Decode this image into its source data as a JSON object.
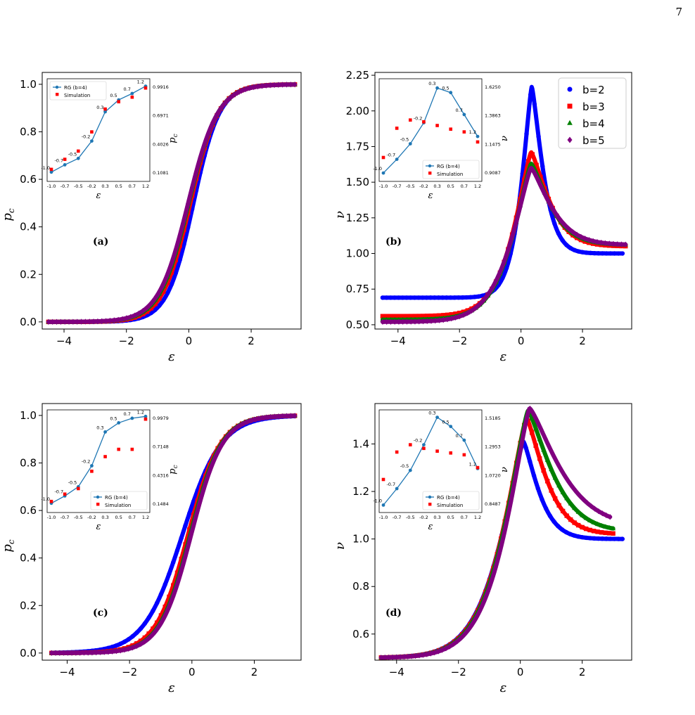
{
  "page_number": "7",
  "chart_data": [
    {
      "panel_label": "(a)",
      "type": "scatter",
      "xlabel": "ε",
      "ylabel": "p_c",
      "xlim": [
        -4.7,
        3.6
      ],
      "ylim": [
        -0.03,
        1.05
      ],
      "x_ticks": [
        -4,
        -2,
        0,
        2
      ],
      "y_ticks": [
        0.0,
        0.2,
        0.4,
        0.6,
        0.8,
        1.0
      ],
      "legend": null,
      "series": [
        {
          "color": "#0000ff",
          "marker": "circle",
          "curve": "sigmoid",
          "x_range": [
            -4.5,
            3.4
          ],
          "center": 0.15,
          "width": 0.42
        },
        {
          "color": "#ff0000",
          "marker": "square",
          "curve": "sigmoid",
          "x_range": [
            -4.5,
            3.4
          ],
          "center": 0.05,
          "width": 0.45
        },
        {
          "color": "#008000",
          "marker": "triangle",
          "curve": "sigmoid",
          "x_range": [
            -4.5,
            3.4
          ],
          "center": 0.0,
          "width": 0.47
        },
        {
          "color": "#800080",
          "marker": "diamond",
          "curve": "sigmoid",
          "x_range": [
            -4.5,
            3.4
          ],
          "center": -0.02,
          "width": 0.48
        }
      ],
      "inset": {
        "xlabel": "ε",
        "ylabel_right": "p_c",
        "x_tick_labels": [
          "-1.0",
          "-0.7",
          "-0.5",
          "-0.2",
          "0.3",
          "0.5",
          "0.7",
          "1.2"
        ],
        "y_left_ticks": [
          "0.6"
        ],
        "y_right_ticks": [
          "0.1081",
          "0.4026",
          "0.6971",
          "0.9916"
        ],
        "legend": [
          "RG (b=4)",
          "Simulation"
        ],
        "legend_position": "top-left",
        "rg_x": [
          -1.0,
          -0.7,
          -0.5,
          -0.2,
          0.3,
          0.5,
          0.7,
          1.2
        ],
        "rg_y": [
          0.04,
          0.12,
          0.19,
          0.38,
          0.7,
          0.83,
          0.9,
          0.98
        ],
        "sim_x": [
          -1.0,
          -0.7,
          -0.5,
          -0.2,
          0.3,
          0.5,
          0.7,
          1.2
        ],
        "sim_y": [
          0.07,
          0.18,
          0.27,
          0.48,
          0.73,
          0.81,
          0.86,
          0.96
        ],
        "rg_point_labels": [
          "-1.0",
          "-0.7",
          "-0.5",
          "-0.2",
          "0.3",
          "0.5",
          "0.7",
          "1.2"
        ],
        "sim_point_labels": [
          "-0.7",
          "-0.5",
          "-0.2",
          "0.5"
        ]
      }
    },
    {
      "panel_label": "(b)",
      "type": "scatter",
      "xlabel": "ε",
      "ylabel": "ν",
      "xlim": [
        -4.75,
        3.6
      ],
      "ylim": [
        0.47,
        2.27
      ],
      "x_ticks": [
        -4,
        -2,
        0,
        2
      ],
      "y_ticks": [
        0.5,
        0.75,
        1.0,
        1.25,
        1.5,
        1.75,
        2.0,
        2.25
      ],
      "legend": [
        "b=2",
        "b=3",
        "b=4",
        "b=5"
      ],
      "legend_position": "top-right",
      "series": [
        {
          "name": "b=2",
          "color": "#0000ff",
          "marker": "circle",
          "curve": "peak",
          "x_range": [
            -4.5,
            3.3
          ],
          "left": 0.69,
          "right": 1.0,
          "peak": 2.17,
          "peak_x": 0.35,
          "left_w": 0.45,
          "right_w": 0.45
        },
        {
          "name": "b=3",
          "color": "#ff0000",
          "marker": "square",
          "curve": "peak",
          "x_range": [
            -4.5,
            3.4
          ],
          "left": 0.56,
          "right": 1.05,
          "peak": 1.71,
          "peak_x": 0.33,
          "left_w": 0.75,
          "right_w": 0.7
        },
        {
          "name": "b=4",
          "color": "#008000",
          "marker": "triangle",
          "curve": "peak",
          "x_range": [
            -4.5,
            3.4
          ],
          "left": 0.535,
          "right": 1.06,
          "peak": 1.63,
          "peak_x": 0.33,
          "left_w": 0.8,
          "right_w": 0.75
        },
        {
          "name": "b=5",
          "color": "#800080",
          "marker": "diamond",
          "curve": "peak",
          "x_range": [
            -4.5,
            3.4
          ],
          "left": 0.52,
          "right": 1.06,
          "peak": 1.6,
          "peak_x": 0.33,
          "left_w": 0.85,
          "right_w": 0.8
        }
      ],
      "inset": {
        "xlabel": "ε",
        "ylabel_right": "ν",
        "x_tick_labels": [
          "-1.0",
          "-0.7",
          "-0.5",
          "-0.2",
          "0.3",
          "0.5",
          "0.7",
          "1.2"
        ],
        "y_left_ticks": [
          "1.50"
        ],
        "y_right_ticks": [
          "0.9087",
          "1.1475",
          "1.3863",
          "1.6250"
        ],
        "legend": [
          "RG (b=4)",
          "Simulation"
        ],
        "legend_position": "bottom-right",
        "rg_x": [
          -1.0,
          -0.7,
          -0.5,
          -0.2,
          0.3,
          0.5,
          0.7,
          1.2
        ],
        "rg_y": [
          0.03,
          0.18,
          0.35,
          0.58,
          0.96,
          0.91,
          0.67,
          0.43
        ],
        "sim_x": [
          -1.0,
          -0.7,
          -0.5,
          -0.2,
          0.3,
          0.5,
          0.7,
          1.2
        ],
        "sim_y": [
          0.2,
          0.52,
          0.61,
          0.59,
          0.55,
          0.51,
          0.48,
          0.37
        ],
        "rg_point_labels": [
          "-1.0",
          "-0.7",
          "-0.5",
          "-0.2",
          "0.3",
          "0.5",
          "0.7",
          "1.2"
        ],
        "sim_point_labels": [
          "-1.0",
          "-0.7",
          "-0.5",
          "-0.2",
          "0.3",
          "0.5",
          "0.7",
          "1.2"
        ]
      }
    },
    {
      "panel_label": "(c)",
      "type": "scatter",
      "xlabel": "ε",
      "ylabel": "p_c",
      "xlim": [
        -4.8,
        3.5
      ],
      "ylim": [
        -0.03,
        1.05
      ],
      "x_ticks": [
        -4,
        -2,
        0,
        2
      ],
      "y_ticks": [
        0.0,
        0.2,
        0.4,
        0.6,
        0.8,
        1.0
      ],
      "legend": null,
      "series": [
        {
          "color": "#0000ff",
          "marker": "circle",
          "curve": "sigmoid",
          "x_range": [
            -4.5,
            3.3
          ],
          "center": -0.3,
          "width": 0.62
        },
        {
          "color": "#ff0000",
          "marker": "square",
          "curve": "sigmoid",
          "x_range": [
            -4.5,
            3.3
          ],
          "center": -0.12,
          "width": 0.52
        },
        {
          "color": "#008000",
          "marker": "triangle",
          "curve": "sigmoid",
          "x_range": [
            -4.5,
            3.3
          ],
          "center": -0.05,
          "width": 0.5
        },
        {
          "color": "#800080",
          "marker": "diamond",
          "curve": "sigmoid",
          "x_range": [
            -4.5,
            3.3
          ],
          "center": -0.02,
          "width": 0.5
        }
      ],
      "inset": {
        "xlabel": "ε",
        "ylabel_right": "p_c",
        "x_tick_labels": [
          "-1.0",
          "-0.7",
          "-0.5",
          "-0.2",
          "0.3",
          "0.5",
          "0.7",
          "1.2"
        ],
        "y_left_ticks": [
          "0.6"
        ],
        "y_right_ticks": [
          "0.1484",
          "0.4316",
          "0.7148",
          "0.9979"
        ],
        "legend": [
          "RG (b=4)",
          "Simulation"
        ],
        "legend_position": "bottom-right",
        "rg_x": [
          -1.0,
          -0.7,
          -0.5,
          -0.2,
          0.3,
          0.5,
          0.7,
          1.2
        ],
        "rg_y": [
          0.04,
          0.12,
          0.22,
          0.45,
          0.82,
          0.92,
          0.97,
          0.99
        ],
        "sim_x": [
          -1.0,
          -0.7,
          -0.5,
          -0.2,
          0.3,
          0.5,
          0.7,
          1.2
        ],
        "sim_y": [
          0.06,
          0.14,
          0.2,
          0.39,
          0.55,
          0.63,
          0.63,
          0.96
        ],
        "rg_point_labels": [
          "-1.0",
          "-0.7",
          "-0.5",
          "-0.2",
          "0.3",
          "0.5",
          "0.7",
          "1.2"
        ],
        "sim_point_labels": [
          "-0.7",
          "-0.5",
          "-0.2",
          "0.3",
          "0.5",
          "0.7"
        ]
      }
    },
    {
      "panel_label": "(d)",
      "type": "scatter",
      "xlabel": "ε",
      "ylabel": "ν",
      "xlim": [
        -4.7,
        3.6
      ],
      "ylim": [
        0.49,
        1.57
      ],
      "x_ticks": [
        -4,
        -2,
        0,
        2
      ],
      "y_ticks": [
        0.6,
        0.8,
        1.0,
        1.2,
        1.4
      ],
      "legend": null,
      "series": [
        {
          "color": "#0000ff",
          "marker": "circle",
          "curve": "peak",
          "x_range": [
            -4.5,
            3.3
          ],
          "left": 0.5,
          "right": 1.0,
          "peak": 1.41,
          "peak_x": 0.1,
          "left_w": 1.0,
          "right_w": 0.6
        },
        {
          "color": "#ff0000",
          "marker": "square",
          "curve": "peak",
          "x_range": [
            -4.5,
            3.0
          ],
          "left": 0.5,
          "right": 1.02,
          "peak": 1.51,
          "peak_x": 0.2,
          "left_w": 1.0,
          "right_w": 0.75
        },
        {
          "color": "#008000",
          "marker": "triangle",
          "curve": "peak",
          "x_range": [
            -4.5,
            3.0
          ],
          "left": 0.5,
          "right": 1.03,
          "peak": 1.54,
          "peak_x": 0.25,
          "left_w": 1.0,
          "right_w": 0.95
        },
        {
          "color": "#800080",
          "marker": "diamond",
          "curve": "peak",
          "x_range": [
            -4.5,
            2.9
          ],
          "left": 0.5,
          "right": 1.05,
          "peak": 1.55,
          "peak_x": 0.3,
          "left_w": 1.0,
          "right_w": 1.2
        }
      ],
      "inset": {
        "xlabel": "ε",
        "ylabel_right": "ν",
        "x_tick_labels": [
          "-1.0",
          "-0.7",
          "-0.5",
          "-0.2",
          "0.3",
          "0.5",
          "0.7",
          "1.2"
        ],
        "y_left_ticks": [],
        "y_right_ticks": [
          "0.8487",
          "1.0720",
          "1.2953",
          "1.5185"
        ],
        "legend": [
          "RG (b=4)",
          "Simulation"
        ],
        "legend_position": "bottom-right",
        "rg_x": [
          -1.0,
          -0.7,
          -0.5,
          -0.2,
          0.3,
          0.5,
          0.7,
          1.2
        ],
        "rg_y": [
          0.02,
          0.2,
          0.4,
          0.68,
          0.98,
          0.88,
          0.73,
          0.42
        ],
        "sim_x": [
          -1.0,
          -0.7,
          -0.5,
          -0.2,
          0.3,
          0.5,
          0.7,
          1.2
        ],
        "sim_y": [
          0.3,
          0.6,
          0.68,
          0.64,
          0.61,
          0.59,
          0.57,
          0.43
        ],
        "rg_point_labels": [
          "-1.0",
          "-0.7",
          "-0.5",
          "-0.2",
          "0.3",
          "0.5",
          "0.7",
          "1.2"
        ],
        "sim_point_labels": [
          "-1.0",
          "-0.7",
          "-0.5",
          "-0.2",
          "0.3",
          "0.5",
          "0.7",
          "1.2"
        ]
      }
    }
  ]
}
